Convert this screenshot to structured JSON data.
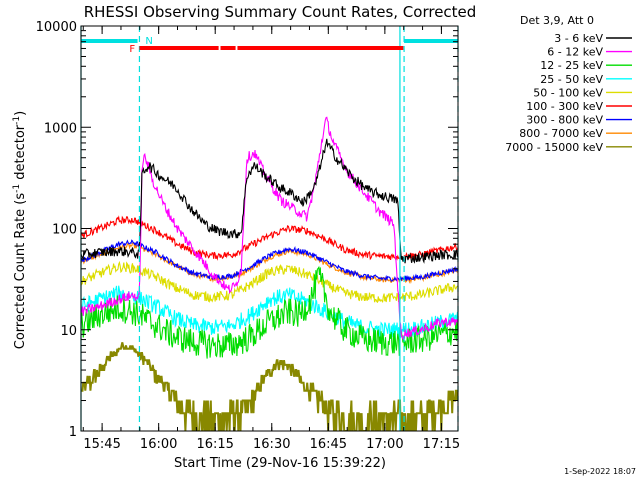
{
  "chart_data": {
    "type": "line",
    "title": "RHESSI Observing Summary Count Rates, Corrected",
    "xlabel": "Start Time (29-Nov-16 15:39:22)",
    "ylabel_main": "Corrected Count Rate (s",
    "ylabel_sup1": "-1",
    "ylabel_mid": " detector",
    "ylabel_sup2": "-1",
    "ylabel_end": ")",
    "x_unit": "minutes since 15:39:22",
    "xlim": [
      0,
      100
    ],
    "ylim": [
      1,
      10000
    ],
    "yscale": "log",
    "x_ticks": [
      {
        "value": 5.6,
        "label": "15:45"
      },
      {
        "value": 20.6,
        "label": "16:00"
      },
      {
        "value": 35.6,
        "label": "16:15"
      },
      {
        "value": 50.6,
        "label": "16:30"
      },
      {
        "value": 65.6,
        "label": "16:45"
      },
      {
        "value": 80.6,
        "label": "17:00"
      },
      {
        "value": 95.6,
        "label": "17:15"
      }
    ],
    "y_ticks": [
      {
        "value": 10000,
        "label": "10000"
      },
      {
        "value": 1000,
        "label": "1000"
      },
      {
        "value": 100,
        "label": "100"
      },
      {
        "value": 10,
        "label": "10"
      },
      {
        "value": 1,
        "label": "1"
      }
    ],
    "legend_header": "Det 3,9, Att 0",
    "legend_position": "right",
    "footer": "1-Sep-2022 18:07",
    "series": [
      {
        "name": "3 - 6 keV",
        "color": "#000000",
        "points": [
          [
            0,
            55
          ],
          [
            5,
            58
          ],
          [
            10,
            60
          ],
          [
            14,
            58
          ],
          [
            15.5,
            55
          ],
          [
            16.2,
            360
          ],
          [
            18,
            420
          ],
          [
            21,
            330
          ],
          [
            25,
            260
          ],
          [
            29,
            160
          ],
          [
            33,
            110
          ],
          [
            36,
            95
          ],
          [
            41,
            88
          ],
          [
            42.5,
            92
          ],
          [
            44,
            330
          ],
          [
            46,
            420
          ],
          [
            49,
            330
          ],
          [
            53,
            250
          ],
          [
            56,
            220
          ],
          [
            59,
            180
          ],
          [
            62,
            260
          ],
          [
            64,
            480
          ],
          [
            65,
            720
          ],
          [
            68,
            480
          ],
          [
            72,
            320
          ],
          [
            76,
            240
          ],
          [
            80,
            210
          ],
          [
            84,
            190
          ],
          [
            84.6,
            75
          ],
          [
            85,
            50
          ],
          [
            90,
            52
          ],
          [
            96,
            55
          ],
          [
            100,
            55
          ]
        ]
      },
      {
        "name": "6 - 12 keV",
        "color": "#ff00ff",
        "points": [
          [
            0,
            15
          ],
          [
            5,
            17
          ],
          [
            10,
            20
          ],
          [
            14,
            22
          ],
          [
            15.5,
            20
          ],
          [
            16.2,
            420
          ],
          [
            17,
            520
          ],
          [
            19,
            300
          ],
          [
            22,
            170
          ],
          [
            26,
            95
          ],
          [
            31,
            55
          ],
          [
            35,
            35
          ],
          [
            39,
            25
          ],
          [
            41,
            27
          ],
          [
            42.5,
            40
          ],
          [
            44,
            500
          ],
          [
            46,
            560
          ],
          [
            49,
            330
          ],
          [
            53,
            190
          ],
          [
            56,
            160
          ],
          [
            60,
            130
          ],
          [
            62,
            270
          ],
          [
            64,
            780
          ],
          [
            65,
            1200
          ],
          [
            67,
            700
          ],
          [
            71,
            350
          ],
          [
            75,
            230
          ],
          [
            79,
            150
          ],
          [
            83,
            110
          ],
          [
            84.6,
            12
          ],
          [
            85,
            9
          ],
          [
            90,
            10
          ],
          [
            96,
            12
          ],
          [
            100,
            12
          ]
        ]
      },
      {
        "name": "12 - 25 keV",
        "color": "#00dd00",
        "points": [
          [
            0,
            11
          ],
          [
            5,
            14
          ],
          [
            10,
            16.5
          ],
          [
            14,
            15
          ],
          [
            20,
            11
          ],
          [
            25,
            8.5
          ],
          [
            30,
            7.5
          ],
          [
            35,
            7
          ],
          [
            40,
            7
          ],
          [
            45,
            8.5
          ],
          [
            50,
            12
          ],
          [
            55,
            15
          ],
          [
            58,
            14
          ],
          [
            61,
            20
          ],
          [
            63,
            34
          ],
          [
            64.5,
            24
          ],
          [
            66,
            15
          ],
          [
            70,
            10
          ],
          [
            75,
            8
          ],
          [
            80,
            7.5
          ],
          [
            85,
            7.5
          ],
          [
            90,
            8
          ],
          [
            96,
            9
          ],
          [
            100,
            10
          ]
        ]
      },
      {
        "name": "25 - 50 keV",
        "color": "#00ffff",
        "points": [
          [
            0,
            17
          ],
          [
            5,
            20
          ],
          [
            10,
            23
          ],
          [
            15,
            21
          ],
          [
            20,
            17
          ],
          [
            25,
            13
          ],
          [
            30,
            11
          ],
          [
            35,
            10.5
          ],
          [
            40,
            11
          ],
          [
            45,
            14
          ],
          [
            50,
            20
          ],
          [
            55,
            22
          ],
          [
            60,
            19
          ],
          [
            65,
            15
          ],
          [
            70,
            12
          ],
          [
            75,
            10.5
          ],
          [
            80,
            10
          ],
          [
            85,
            10
          ],
          [
            90,
            10.5
          ],
          [
            96,
            12
          ],
          [
            100,
            13
          ]
        ]
      },
      {
        "name": "50 - 100 keV",
        "color": "#dddd00",
        "points": [
          [
            0,
            30
          ],
          [
            5,
            36
          ],
          [
            10,
            42
          ],
          [
            15,
            40
          ],
          [
            20,
            33
          ],
          [
            25,
            26
          ],
          [
            30,
            22
          ],
          [
            35,
            21
          ],
          [
            40,
            22
          ],
          [
            45,
            28
          ],
          [
            50,
            37
          ],
          [
            55,
            40
          ],
          [
            60,
            35
          ],
          [
            65,
            28
          ],
          [
            70,
            23
          ],
          [
            75,
            21
          ],
          [
            80,
            20.5
          ],
          [
            85,
            21
          ],
          [
            90,
            22
          ],
          [
            96,
            25
          ],
          [
            100,
            27
          ]
        ]
      },
      {
        "name": "100 - 300 keV",
        "color": "#ff0000",
        "points": [
          [
            0,
            85
          ],
          [
            5,
            100
          ],
          [
            10,
            120
          ],
          [
            14,
            122
          ],
          [
            20,
            95
          ],
          [
            25,
            72
          ],
          [
            30,
            58
          ],
          [
            35,
            54
          ],
          [
            40,
            55
          ],
          [
            45,
            68
          ],
          [
            50,
            85
          ],
          [
            55,
            100
          ],
          [
            60,
            95
          ],
          [
            65,
            78
          ],
          [
            70,
            62
          ],
          [
            75,
            55
          ],
          [
            80,
            53
          ],
          [
            85,
            53
          ],
          [
            90,
            55
          ],
          [
            96,
            62
          ],
          [
            100,
            67
          ]
        ]
      },
      {
        "name": "300 - 800 keV",
        "color": "#0000ff",
        "points": [
          [
            0,
            48
          ],
          [
            5,
            58
          ],
          [
            10,
            70
          ],
          [
            14,
            73
          ],
          [
            20,
            58
          ],
          [
            25,
            44
          ],
          [
            30,
            36
          ],
          [
            35,
            33
          ],
          [
            40,
            34
          ],
          [
            45,
            42
          ],
          [
            50,
            54
          ],
          [
            55,
            63
          ],
          [
            60,
            58
          ],
          [
            65,
            47
          ],
          [
            70,
            38
          ],
          [
            75,
            34
          ],
          [
            80,
            32
          ],
          [
            85,
            32
          ],
          [
            90,
            33
          ],
          [
            96,
            37
          ],
          [
            100,
            40
          ]
        ]
      },
      {
        "name": "800 - 7000 keV",
        "color": "#ff8800",
        "points": [
          [
            0,
            47
          ],
          [
            5,
            55
          ],
          [
            10,
            65
          ],
          [
            14,
            68
          ],
          [
            20,
            55
          ],
          [
            25,
            43
          ],
          [
            30,
            35
          ],
          [
            35,
            32
          ],
          [
            40,
            33
          ],
          [
            45,
            40
          ],
          [
            50,
            52
          ],
          [
            55,
            60
          ],
          [
            60,
            56
          ],
          [
            65,
            45
          ],
          [
            70,
            37
          ],
          [
            75,
            33
          ],
          [
            80,
            31
          ],
          [
            85,
            31
          ],
          [
            90,
            32
          ],
          [
            96,
            36
          ],
          [
            100,
            39
          ]
        ]
      },
      {
        "name": "7000 - 15000 keV",
        "color": "#888800",
        "points": [
          [
            0,
            2.5
          ],
          [
            4,
            3.5
          ],
          [
            8,
            5.5
          ],
          [
            11,
            7
          ],
          [
            14,
            6.5
          ],
          [
            17,
            5
          ],
          [
            20,
            3.5
          ],
          [
            23,
            2.5
          ],
          [
            26,
            1.8
          ],
          [
            30,
            1.4
          ],
          [
            35,
            1.3
          ],
          [
            40,
            1.35
          ],
          [
            45,
            1.8
          ],
          [
            49,
            3.5
          ],
          [
            52,
            4.8
          ],
          [
            55,
            4.5
          ],
          [
            58,
            3.2
          ],
          [
            62,
            2.2
          ],
          [
            66,
            1.5
          ],
          [
            70,
            1.3
          ],
          [
            80,
            1.3
          ],
          [
            90,
            1.4
          ],
          [
            96,
            1.8
          ],
          [
            100,
            2.2
          ]
        ]
      }
    ],
    "annotations": {
      "flag_F": "F",
      "flag_N": "N",
      "cyan_bars": [
        [
          0,
          15
        ],
        [
          85.7,
          100
        ]
      ],
      "red_segments": [
        [
          15.5,
          36.5
        ],
        [
          37,
          41
        ],
        [
          41.5,
          85.5
        ]
      ],
      "dashed_lines": [
        15.5,
        85.7,
        100
      ],
      "solid_lines": [
        0,
        84.6
      ]
    }
  }
}
